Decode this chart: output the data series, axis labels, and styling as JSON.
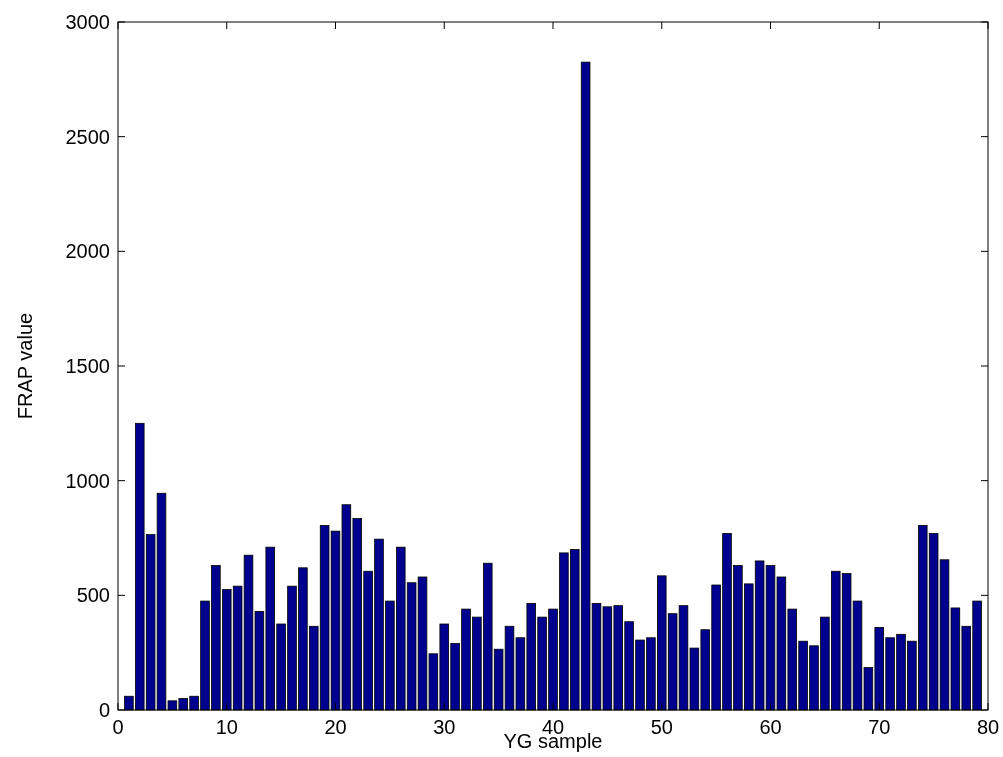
{
  "chart_data": {
    "type": "bar",
    "xlabel": "YG sample",
    "ylabel": "FRAP value",
    "color": "#00008f",
    "x": [
      1,
      2,
      3,
      4,
      5,
      6,
      7,
      8,
      9,
      10,
      11,
      12,
      13,
      14,
      15,
      16,
      17,
      18,
      19,
      20,
      21,
      22,
      23,
      24,
      25,
      26,
      27,
      28,
      29,
      30,
      31,
      32,
      33,
      34,
      35,
      36,
      37,
      38,
      39,
      40,
      41,
      42,
      43,
      44,
      45,
      46,
      47,
      48,
      49,
      50,
      51,
      52,
      53,
      54,
      55,
      56,
      57,
      58,
      59,
      60,
      61,
      62,
      63,
      64,
      65,
      66,
      67,
      68,
      69,
      70,
      71,
      72,
      73,
      74,
      75,
      76,
      77,
      78,
      79
    ],
    "values": [
      60,
      1250,
      765,
      945,
      40,
      50,
      60,
      475,
      630,
      525,
      540,
      675,
      430,
      710,
      375,
      540,
      620,
      365,
      805,
      780,
      895,
      835,
      605,
      745,
      475,
      710,
      555,
      580,
      245,
      375,
      290,
      440,
      405,
      640,
      265,
      365,
      315,
      465,
      405,
      440,
      685,
      700,
      2825,
      465,
      450,
      455,
      385,
      305,
      315,
      585,
      420,
      455,
      270,
      350,
      545,
      770,
      630,
      550,
      650,
      630,
      580,
      440,
      300,
      280,
      405,
      605,
      595,
      475,
      185,
      360,
      315,
      330,
      300,
      805,
      770,
      655,
      445,
      365,
      475
    ],
    "xlim": [
      0,
      80
    ],
    "xticks": [
      0,
      10,
      20,
      30,
      40,
      50,
      60,
      70,
      80
    ],
    "ylim": [
      0,
      3000
    ],
    "yticks": [
      0,
      500,
      1000,
      1500,
      2000,
      2500,
      3000
    ],
    "grid": false
  }
}
